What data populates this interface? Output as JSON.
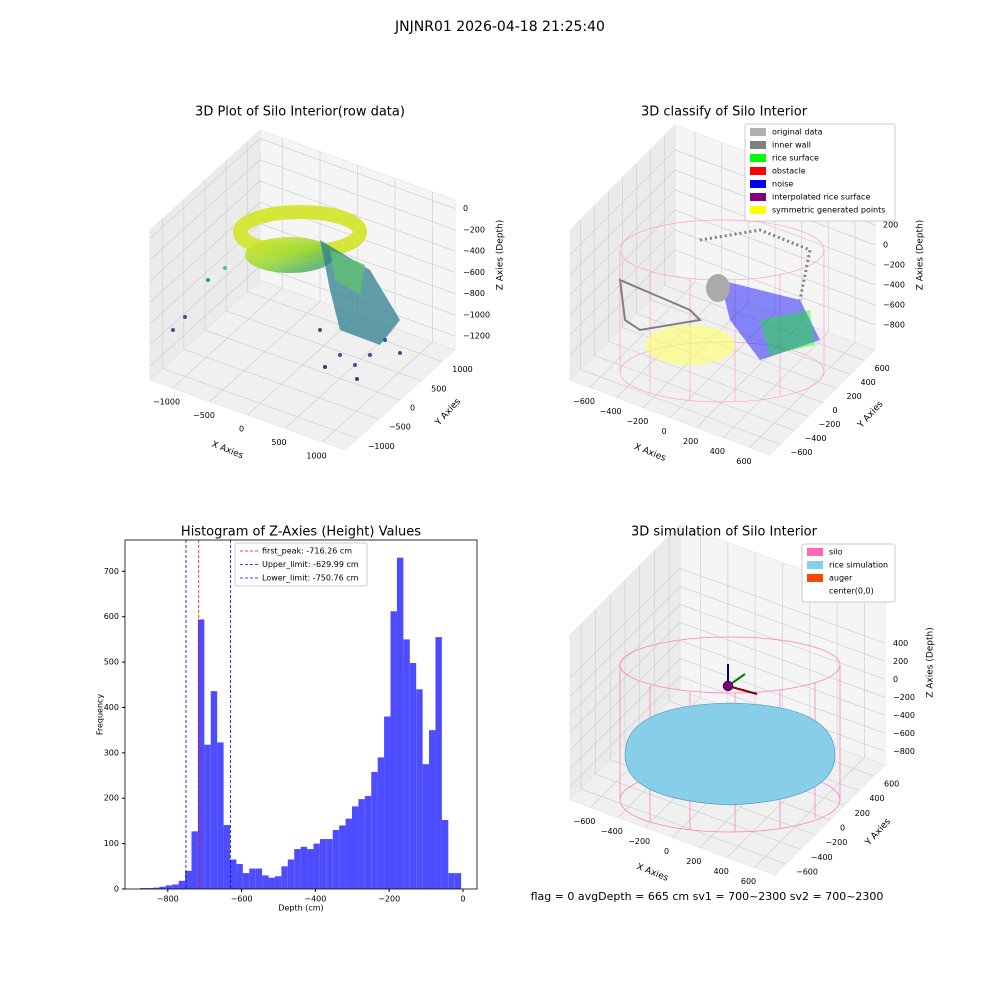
{
  "title": "JNJNR01 2026-04-18 21:25:40",
  "status": "flag = 0     avgDepth = 665 cm  sv1 = 700~2300  sv2 = 700~2300",
  "chart_data": [
    {
      "type": "scatter3d",
      "title": "3D Plot of Silo Interior(row data)",
      "xlabel": "X Axies",
      "ylabel": "Y Axies",
      "zlabel": "Z Axies (Depth)",
      "xlim": [
        -1300,
        1300
      ],
      "ylim": [
        -1300,
        1300
      ],
      "zlim": [
        -1330,
        80
      ],
      "xticks": [
        {
          "value": -1000,
          "label": "−1000"
        },
        {
          "value": -500,
          "label": "−500"
        },
        0,
        500,
        1000
      ],
      "yticks": [
        {
          "value": -1000,
          "label": "−1000"
        },
        {
          "value": -500,
          "label": "−500"
        },
        0,
        500,
        1000
      ],
      "zticks": [
        0,
        {
          "value": -200,
          "label": "−200"
        },
        {
          "value": -400,
          "label": "−400"
        },
        {
          "value": -600,
          "label": "−600"
        },
        {
          "value": -800,
          "label": "−800"
        },
        {
          "value": -1000,
          "label": "−1000"
        },
        {
          "value": -1200,
          "label": "−1200"
        }
      ]
    },
    {
      "type": "scatter3d",
      "title": "3D classify of Silo Interior",
      "xlabel": "X Axies",
      "ylabel": "Y Axies",
      "zlabel": "Z Axies (Depth)",
      "xlim": [
        -750,
        750
      ],
      "ylim": [
        -750,
        750
      ],
      "zlim": [
        -1050,
        450
      ],
      "xticks": [
        {
          "value": -600,
          "label": "−600"
        },
        {
          "value": -400,
          "label": "−400"
        },
        {
          "value": -200,
          "label": "−200"
        },
        0,
        200,
        400,
        600
      ],
      "yticks": [
        {
          "value": -600,
          "label": "−600"
        },
        {
          "value": -400,
          "label": "−400"
        },
        {
          "value": -200,
          "label": "−200"
        },
        0,
        200,
        400,
        600
      ],
      "zticks": [
        200,
        0,
        {
          "value": -200,
          "label": "−200"
        },
        {
          "value": -400,
          "label": "−400"
        },
        {
          "value": -600,
          "label": "−600"
        },
        {
          "value": -800,
          "label": "−800"
        }
      ],
      "legend": [
        {
          "name": "original data",
          "color": "#b0b0b0"
        },
        {
          "name": "inner wall",
          "color": "#808080"
        },
        {
          "name": "rice surface",
          "color": "#00ff00"
        },
        {
          "name": "obstacle",
          "color": "#ff0000"
        },
        {
          "name": "noise",
          "color": "#0000ff"
        },
        {
          "name": "interpolated rice surface",
          "color": "#800080"
        },
        {
          "name": "symmetric generated points",
          "color": "#ffff00"
        }
      ]
    },
    {
      "type": "histogram",
      "title": "Histogram of Z-Axies (Height) Values",
      "xlabel": "Depth (cm)",
      "ylabel": "Frequency",
      "color": "#4d4dff",
      "bins": [
        -875,
        -857.6,
        -840.2,
        -822.8,
        -805.4,
        -788,
        -770.6,
        -753.2,
        -735.8,
        -718.4,
        -701,
        -683.6,
        -666.2,
        -648.8,
        -631.4,
        -614,
        -596.6,
        -579.2,
        -561.8,
        -544.4,
        -527,
        -509.6,
        -492.2,
        -474.8,
        -457.4,
        -440,
        -422.6,
        -405.2,
        -387.8,
        -370.4,
        -353,
        -335.6,
        -318.2,
        -300.8,
        -283.4,
        -266,
        -248.6,
        -231.2,
        -213.8,
        -196.4,
        -179,
        -161.6,
        -144.2,
        -126.8,
        -109.4,
        -92,
        -74.6,
        -57.2,
        -39.8,
        -22.4,
        -5
      ],
      "values": [
        2,
        2,
        3,
        5,
        8,
        10,
        18,
        40,
        127,
        594,
        318,
        436,
        323,
        141,
        65,
        55,
        35,
        45,
        45,
        30,
        25,
        28,
        50,
        65,
        88,
        93,
        88,
        100,
        110,
        110,
        130,
        140,
        155,
        182,
        198,
        205,
        258,
        290,
        380,
        612,
        730,
        550,
        498,
        440,
        275,
        350,
        555,
        152,
        35,
        35
      ],
      "xlim": [
        -916,
        38
      ],
      "ylim": [
        0,
        769
      ],
      "xticks": [
        {
          "value": -800,
          "label": "−800"
        },
        {
          "value": -600,
          "label": "−600"
        },
        {
          "value": -400,
          "label": "−400"
        },
        {
          "value": -200,
          "label": "−200"
        },
        0
      ],
      "yticks": [
        0,
        100,
        200,
        300,
        400,
        500,
        600,
        700
      ],
      "lines": [
        {
          "name": "first_peak: -716.26 cm",
          "value": -716.26,
          "color": "#ff0000"
        },
        {
          "name": "Upper_limit: -629.99 cm",
          "value": -629.99,
          "color": "#0000cc"
        },
        {
          "name": "Lower_limit: -750.76 cm",
          "value": -750.76,
          "color": "#0000cc"
        }
      ]
    },
    {
      "type": "surface3d",
      "title": "3D simulation of Silo Interior",
      "xlabel": "X Axies",
      "ylabel": "Y Axies",
      "zlabel": "Z Axies (Depth)",
      "xlim": [
        -750,
        750
      ],
      "ylim": [
        -750,
        750
      ],
      "zlim": [
        -950,
        880
      ],
      "xticks": [
        {
          "value": -600,
          "label": "−600"
        },
        {
          "value": -400,
          "label": "−400"
        },
        {
          "value": -200,
          "label": "−200"
        },
        0,
        200,
        400,
        600
      ],
      "yticks": [
        {
          "value": -600,
          "label": "−600"
        },
        {
          "value": -400,
          "label": "−400"
        },
        {
          "value": -200,
          "label": "−200"
        },
        0,
        200,
        400,
        600
      ],
      "zticks": [
        400,
        200,
        0,
        {
          "value": -200,
          "label": "−200"
        },
        {
          "value": -400,
          "label": "−400"
        },
        {
          "value": -600,
          "label": "−600"
        },
        {
          "value": -800,
          "label": "−800"
        }
      ],
      "legend": [
        {
          "name": "silo",
          "color": "#ff69b4"
        },
        {
          "name": "rice simulation",
          "color": "#87ceeb"
        },
        {
          "name": "auger",
          "color": "#ff4500"
        },
        {
          "name": "center(0,0)",
          "color": "#ffffff"
        }
      ]
    }
  ]
}
